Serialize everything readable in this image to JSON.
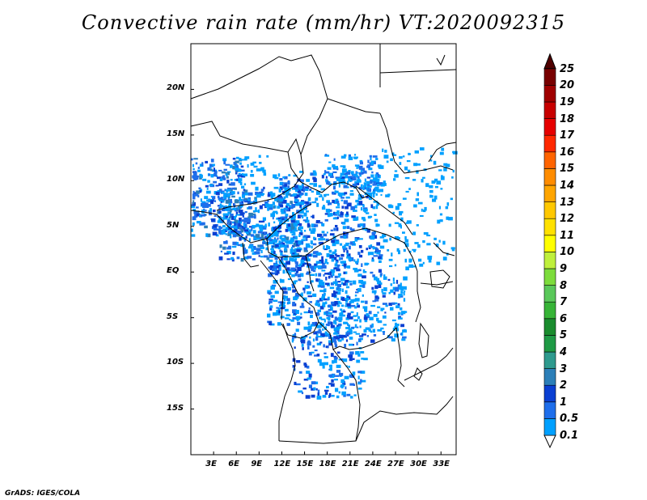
{
  "title": "Convective rain rate (mm/hr) VT:2020092315",
  "credit": "GrADS: IGES/COLA",
  "map": {
    "lon_range": [
      0,
      35
    ],
    "lat_range": [
      -20,
      25
    ],
    "lon_ticks": [
      "3E",
      "6E",
      "9E",
      "12E",
      "15E",
      "18E",
      "21E",
      "24E",
      "27E",
      "30E",
      "33E"
    ],
    "lat_ticks": [
      "20N",
      "15N",
      "10N",
      "5N",
      "EQ",
      "5S",
      "10S",
      "15S"
    ],
    "region": "Central Africa"
  },
  "colorbar": {
    "levels": [
      "0.1",
      "0.5",
      "1",
      "2",
      "3",
      "4",
      "5",
      "6",
      "7",
      "8",
      "9",
      "10",
      "11",
      "12",
      "13",
      "14",
      "15",
      "16",
      "17",
      "18",
      "19",
      "20",
      "25"
    ],
    "colors": [
      "#00a0ff",
      "#1e6eeb",
      "#0a3fd2",
      "#2c7fb8",
      "#2e9a8e",
      "#1f9a45",
      "#1a8c2e",
      "#37b437",
      "#5ac85a",
      "#7ddc3c",
      "#bff03c",
      "#ffff00",
      "#ffe100",
      "#ffc800",
      "#ffa500",
      "#ff8c00",
      "#ff6400",
      "#ff2800",
      "#e60000",
      "#c80000",
      "#a00000",
      "#780000",
      "#500000"
    ]
  }
}
